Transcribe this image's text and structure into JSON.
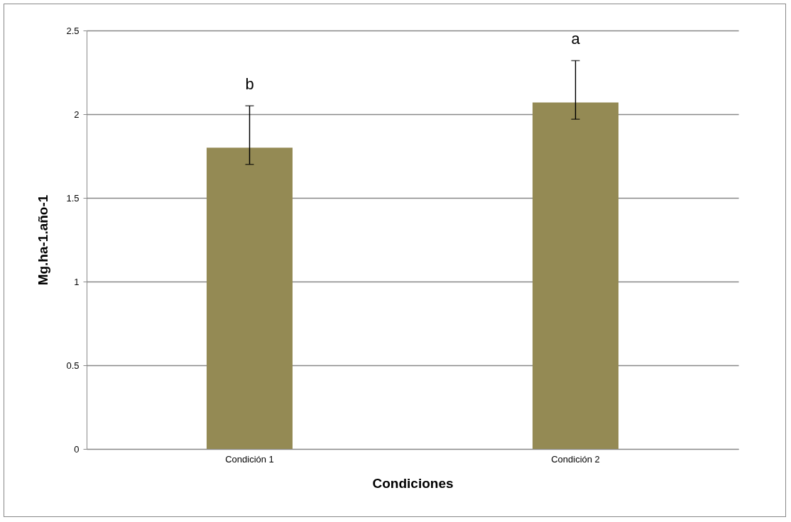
{
  "chart_data": {
    "type": "bar",
    "xlabel": "Condiciones",
    "ylabel": "Mg.ha-1.año-1",
    "categories": [
      "Condición 1",
      "Condición 2"
    ],
    "values": [
      1.8,
      2.07
    ],
    "color": "#948a54",
    "errors": [
      [
        1.7,
        2.05
      ],
      [
        1.97,
        2.32
      ]
    ],
    "annotations": [
      "b",
      "a"
    ],
    "ylim": [
      0,
      2.5
    ],
    "yticks": [
      0,
      0.5,
      1,
      1.5,
      2,
      2.5
    ],
    "grid": "y"
  }
}
